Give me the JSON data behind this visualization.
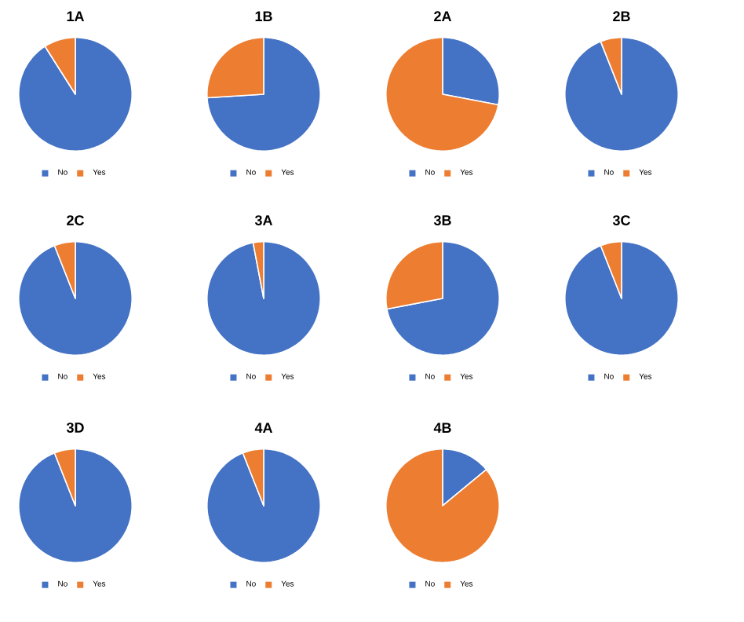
{
  "chart_data": [
    {
      "type": "pie",
      "title": "1A",
      "categories": [
        "No",
        "Yes"
      ],
      "values": [
        91,
        9
      ],
      "colors": [
        "#4472c4",
        "#ed7d31"
      ],
      "legend": "bottom"
    },
    {
      "type": "pie",
      "title": "1B",
      "categories": [
        "No",
        "Yes"
      ],
      "values": [
        74,
        26
      ],
      "colors": [
        "#4472c4",
        "#ed7d31"
      ],
      "legend": "bottom"
    },
    {
      "type": "pie",
      "title": "2A",
      "categories": [
        "No",
        "Yes"
      ],
      "values": [
        28,
        72
      ],
      "colors": [
        "#4472c4",
        "#ed7d31"
      ],
      "legend": "bottom"
    },
    {
      "type": "pie",
      "title": "2B",
      "categories": [
        "No",
        "Yes"
      ],
      "values": [
        94,
        6
      ],
      "colors": [
        "#4472c4",
        "#ed7d31"
      ],
      "legend": "bottom"
    },
    {
      "type": "pie",
      "title": "2C",
      "categories": [
        "No",
        "Yes"
      ],
      "values": [
        94,
        6
      ],
      "colors": [
        "#4472c4",
        "#ed7d31"
      ],
      "legend": "bottom"
    },
    {
      "type": "pie",
      "title": "3A",
      "categories": [
        "No",
        "Yes"
      ],
      "values": [
        97,
        3
      ],
      "colors": [
        "#4472c4",
        "#ed7d31"
      ],
      "legend": "bottom"
    },
    {
      "type": "pie",
      "title": "3B",
      "categories": [
        "No",
        "Yes"
      ],
      "values": [
        72,
        28
      ],
      "colors": [
        "#4472c4",
        "#ed7d31"
      ],
      "legend": "bottom"
    },
    {
      "type": "pie",
      "title": "3C",
      "categories": [
        "No",
        "Yes"
      ],
      "values": [
        94,
        6
      ],
      "colors": [
        "#4472c4",
        "#ed7d31"
      ],
      "legend": "bottom"
    },
    {
      "type": "pie",
      "title": "3D",
      "categories": [
        "No",
        "Yes"
      ],
      "values": [
        94,
        6
      ],
      "colors": [
        "#4472c4",
        "#ed7d31"
      ],
      "legend": "bottom"
    },
    {
      "type": "pie",
      "title": "4A",
      "categories": [
        "No",
        "Yes"
      ],
      "values": [
        94,
        6
      ],
      "colors": [
        "#4472c4",
        "#ed7d31"
      ],
      "legend": "bottom"
    },
    {
      "type": "pie",
      "title": "4B",
      "categories": [
        "No",
        "Yes"
      ],
      "values": [
        14,
        86
      ],
      "colors": [
        "#4472c4",
        "#ed7d31"
      ],
      "legend": "bottom"
    }
  ]
}
